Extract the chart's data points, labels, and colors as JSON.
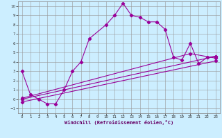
{
  "xlabel": "Windchill (Refroidissement éolien,°C)",
  "ylabel": "",
  "background_color": "#cceeff",
  "grid_color": "#999999",
  "line_color": "#990099",
  "xlim": [
    -0.5,
    23.5
  ],
  "ylim": [
    -1.5,
    10.5
  ],
  "xticks": [
    0,
    1,
    2,
    3,
    4,
    5,
    6,
    7,
    8,
    9,
    10,
    11,
    12,
    13,
    14,
    15,
    16,
    17,
    18,
    19,
    20,
    21,
    22,
    23
  ],
  "yticks": [
    -1,
    0,
    1,
    2,
    3,
    4,
    5,
    6,
    7,
    8,
    9,
    10
  ],
  "line1_x": [
    0,
    1,
    2,
    3,
    4,
    5,
    6,
    7,
    8,
    10,
    11,
    12,
    13,
    14,
    15,
    16,
    17,
    18,
    19,
    20,
    21,
    22,
    23
  ],
  "line1_y": [
    3.0,
    0.5,
    0.0,
    -0.5,
    -0.5,
    1.0,
    3.0,
    4.0,
    6.5,
    8.0,
    9.0,
    10.3,
    9.0,
    8.8,
    8.3,
    8.3,
    7.5,
    4.5,
    4.2,
    6.0,
    3.8,
    4.5,
    4.6
  ],
  "line2_x": [
    0,
    23
  ],
  "line2_y": [
    0.0,
    4.6
  ],
  "line3_x": [
    0,
    23
  ],
  "line3_y": [
    -0.3,
    4.1
  ],
  "line4_x": [
    0,
    20,
    23
  ],
  "line4_y": [
    0.1,
    4.9,
    4.4
  ]
}
